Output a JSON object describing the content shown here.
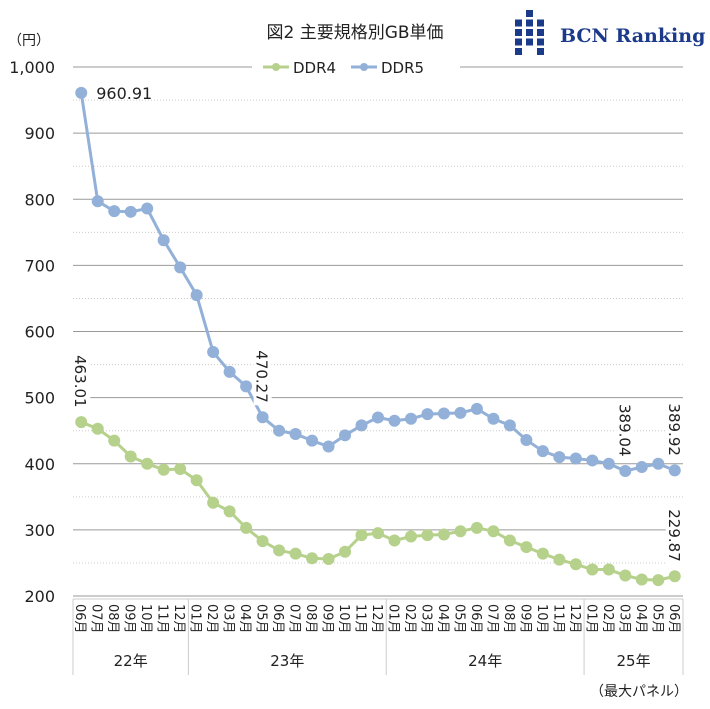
{
  "chart_data": {
    "type": "line",
    "title": "図2  主要規格別GB単価",
    "ylabel": "（円）",
    "footnote": "（最大パネル）",
    "logo": "BCN Ranking",
    "ylim": [
      200,
      1000
    ],
    "yticks": [
      200,
      300,
      400,
      500,
      600,
      700,
      800,
      900,
      1000
    ],
    "ytick_labels": [
      "200",
      "300",
      "400",
      "500",
      "600",
      "700",
      "800",
      "900",
      "1,000"
    ],
    "legend_position": "top",
    "x": [
      "06月",
      "07月",
      "08月",
      "09月",
      "10月",
      "11月",
      "12月",
      "01月",
      "02月",
      "03月",
      "04月",
      "05月",
      "06月",
      "07月",
      "08月",
      "09月",
      "10月",
      "11月",
      "12月",
      "01月",
      "02月",
      "03月",
      "04月",
      "05月",
      "06月",
      "07月",
      "08月",
      "09月",
      "10月",
      "11月",
      "12月",
      "01月",
      "02月",
      "03月",
      "04月",
      "05月",
      "06月"
    ],
    "years": [
      {
        "label": "22年",
        "count": 7
      },
      {
        "label": "23年",
        "count": 12
      },
      {
        "label": "24年",
        "count": 12
      },
      {
        "label": "25年",
        "count": 6
      }
    ],
    "series": [
      {
        "name": "DDR4",
        "color": "#b5d18b",
        "values": [
          463.01,
          453,
          435,
          411,
          400,
          391,
          392,
          375,
          341,
          328,
          303,
          283,
          269,
          264,
          257,
          256,
          267,
          292,
          295,
          284,
          290,
          292,
          293,
          298,
          303,
          298,
          284,
          274,
          264,
          255,
          248,
          240,
          240,
          231,
          225,
          224,
          229.87
        ],
        "labels": [
          {
            "index": 0,
            "text": "463.01"
          },
          {
            "index": 36,
            "text": "229.87"
          }
        ]
      },
      {
        "name": "DDR5",
        "color": "#92b0d8",
        "values": [
          960.91,
          797,
          782,
          781,
          786,
          738,
          697,
          655,
          569,
          539,
          517,
          470.27,
          450,
          445,
          435,
          426,
          443,
          458,
          470,
          465,
          468,
          475,
          476,
          477,
          483,
          468,
          458,
          436,
          419,
          410,
          408,
          405,
          400,
          389.04,
          395,
          400,
          389.92
        ],
        "labels": [
          {
            "index": 0,
            "text": "960.91"
          },
          {
            "index": 11,
            "text": "470.27"
          },
          {
            "index": 33,
            "text": "389.04"
          },
          {
            "index": 36,
            "text": "389.92"
          }
        ]
      }
    ]
  }
}
